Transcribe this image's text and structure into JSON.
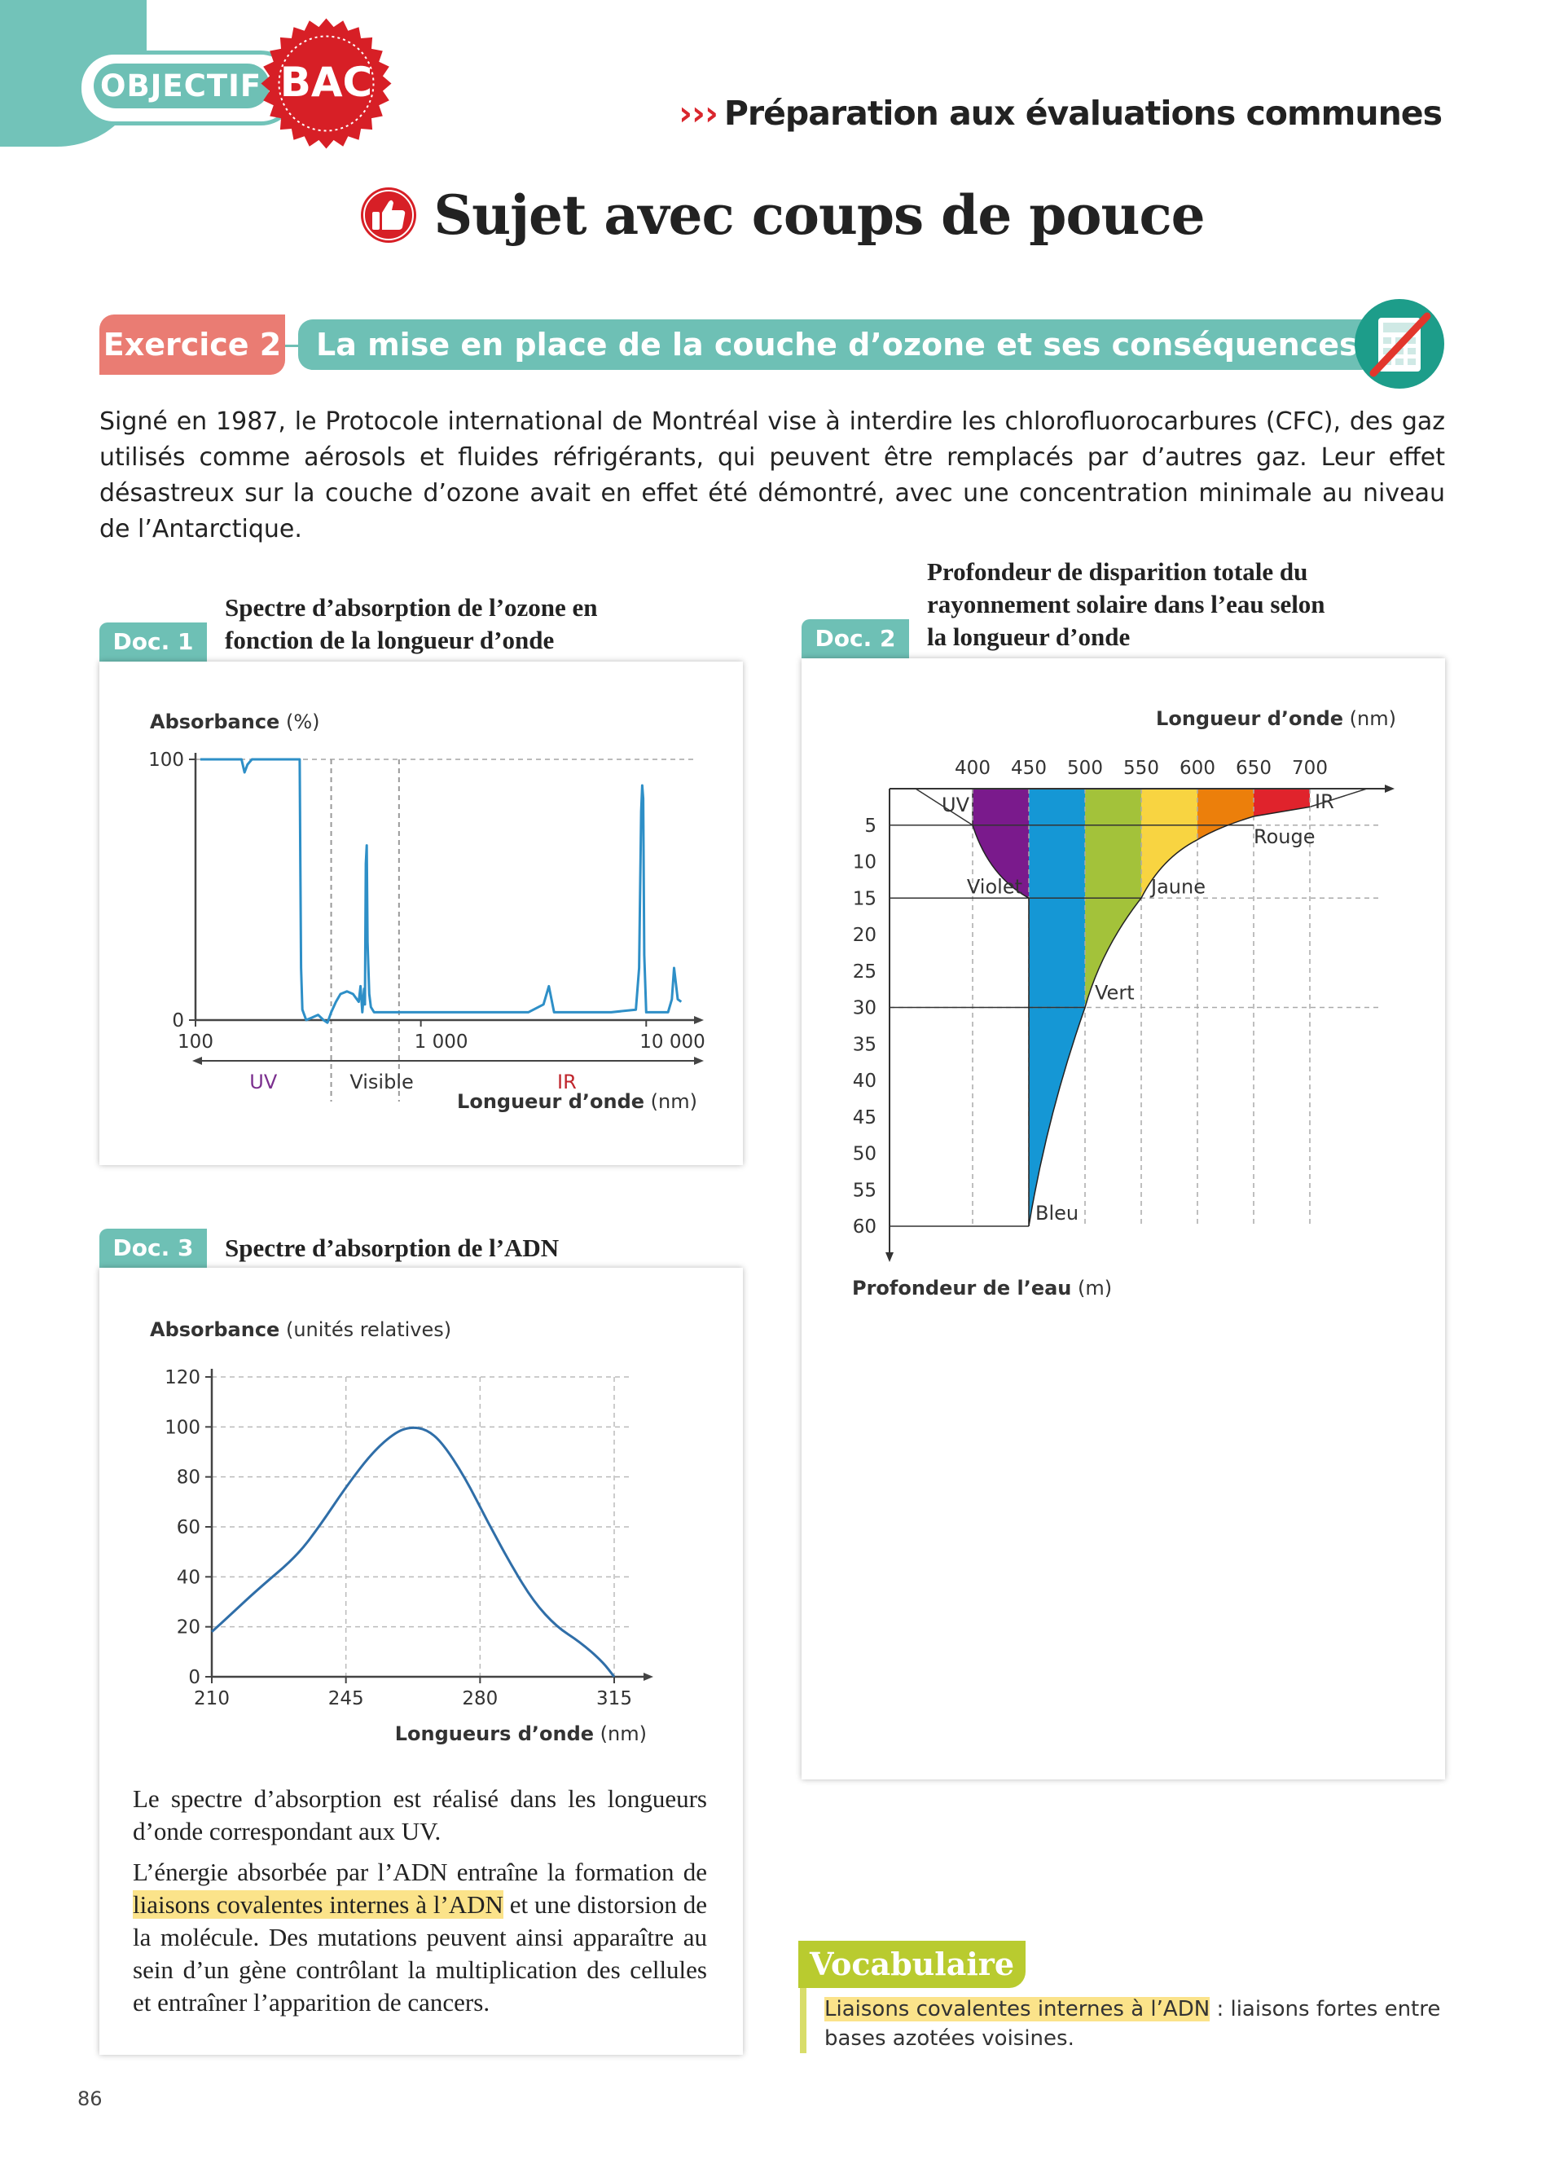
{
  "header": {
    "objectif_label": "OBJECTIF",
    "bac_label": "BAC",
    "chevrons": "›››",
    "section_label": "Préparation aux évaluations communes"
  },
  "title": "Sujet avec coups de pouce",
  "exercise": {
    "badge": "Exercice 2",
    "title": "La mise en place de la couche d’ozone et ses conséquences",
    "intro": "Signé en 1987, le Protocole international de Montréal vise à interdire les chlorofluorocarbures (CFC), des gaz utilisés comme aérosols et fluides réfrigérants, qui peuvent être remplacés par d’autres gaz. Leur effet désastreux sur la couche d’ozone avait en effet été démontré, avec une concentration minimale au niveau de l’Antarctique."
  },
  "doc1": {
    "tab": "Doc. 1",
    "title": "Spectre d’absorption de l’ozone en fonction de la longueur d’onde"
  },
  "doc2": {
    "tab": "Doc. 2",
    "title": "Profondeur de disparition totale du rayonnement solaire dans l’eau selon la longueur d’onde"
  },
  "doc3": {
    "tab": "Doc. 3",
    "title": "Spectre d’absorption de l’ADN",
    "para1": "Le spectre d’absorption est réalisé dans les longueurs d’onde correspondant aux UV.",
    "para2_a": "L’énergie absorbée par l’ADN entraîne la formation de ",
    "para2_hl": "liaisons covalentes internes à l’ADN",
    "para2_b": " et une distorsion de la molécule. Des mutations peuvent ainsi apparaître au sein d’un gène contrôlant la multiplication des cellules et entraîner l’apparition de cancers."
  },
  "vocab": {
    "label": "Vocabulaire",
    "term": "Liaisons covalentes internes à l’ADN",
    "definition": " : liaisons fortes entre bases azotées voisines."
  },
  "page_number": "86",
  "chart_data": [
    {
      "id": "doc1",
      "type": "line",
      "ylabel_bold": "Absorbance",
      "ylabel_unit": " (%)",
      "xlabel_bold": "Longueur d’onde",
      "xlabel_unit": " (nm)",
      "x_scale": "log",
      "xlim": [
        100,
        15000
      ],
      "ylim": [
        0,
        100
      ],
      "x_ticks": [
        "100",
        "1 000",
        "10 000"
      ],
      "y_ticks": [
        "0",
        "100"
      ],
      "regions": [
        {
          "label": "UV",
          "from": 100,
          "to": 400,
          "color": "#7b2f8e"
        },
        {
          "label": "Visible",
          "from": 400,
          "to": 800,
          "color": "#333333"
        },
        {
          "label": "IR",
          "from": 800,
          "to": 15000,
          "color": "#c0262d"
        }
      ],
      "series": [
        {
          "color": "#2e8fc7",
          "x": [
            105,
            160,
            165,
            170,
            178,
            190,
            205,
            225,
            260,
            290,
            292,
            294,
            298,
            310,
            330,
            350,
            370,
            385,
            400,
            420,
            440,
            470,
            500,
            530,
            540,
            550,
            560,
            565,
            570,
            575,
            580,
            590,
            600,
            620,
            650,
            700,
            800,
            1000,
            2000,
            3000,
            3500,
            3700,
            3800,
            3900,
            4200,
            5000,
            7000,
            9000,
            9300,
            9500,
            9600,
            9700,
            9800,
            10000,
            11000,
            12500,
            13000,
            13300,
            13800,
            14300
          ],
          "y": [
            100,
            100,
            95,
            98,
            100,
            100,
            100,
            100,
            100,
            100,
            60,
            20,
            4,
            0,
            1,
            2,
            0,
            -1,
            3,
            7,
            10,
            11,
            10,
            7,
            13,
            3,
            12,
            6,
            60,
            67,
            30,
            10,
            5,
            3,
            3,
            3,
            3,
            3,
            3,
            3,
            6,
            13,
            8,
            3,
            3,
            3,
            3,
            4,
            20,
            80,
            90,
            85,
            25,
            3,
            3,
            3,
            8,
            20,
            8,
            7
          ]
        }
      ]
    },
    {
      "id": "doc3",
      "type": "line",
      "ylabel_bold": "Absorbance",
      "ylabel_unit": " (unités relatives)",
      "xlabel_bold": "Longueurs d’onde",
      "xlabel_unit": " (nm)",
      "xlim": [
        210,
        315
      ],
      "ylim": [
        0,
        120
      ],
      "x_ticks": [
        210,
        245,
        280,
        315
      ],
      "y_ticks": [
        0,
        20,
        40,
        60,
        80,
        100,
        120
      ],
      "grid": true,
      "series": [
        {
          "color": "#2f6ea8",
          "x": [
            210,
            215,
            222,
            232,
            238,
            245,
            252,
            258,
            262,
            266,
            270,
            276,
            282,
            288,
            294,
            300,
            306,
            312,
            315
          ],
          "y": [
            18,
            25,
            35,
            48,
            60,
            76,
            90,
            98,
            100,
            99,
            94,
            80,
            62,
            45,
            30,
            20,
            14,
            6,
            0
          ]
        }
      ]
    },
    {
      "id": "doc2",
      "type": "area",
      "xlabel_bold": "Longueur d’onde",
      "xlabel_unit": " (nm)",
      "ylabel_bold": "Profondeur de l’eau",
      "ylabel_unit": " (m)",
      "x_ticks": [
        400,
        450,
        500,
        550,
        600,
        650,
        700
      ],
      "y_ticks": [
        5,
        10,
        15,
        20,
        25,
        30,
        35,
        40,
        45,
        50,
        55,
        60
      ],
      "ylim": [
        0,
        60
      ],
      "bands": [
        {
          "label": "UV",
          "color": "#ffffff"
        },
        {
          "label": "Violet",
          "color": "#7a1a8c",
          "depth": 15
        },
        {
          "label": "Bleu",
          "color": "#1597d5",
          "depth": 60
        },
        {
          "label": "Vert",
          "color": "#a3c23a",
          "depth": 30
        },
        {
          "label": "Jaune",
          "color": "#f8d441",
          "depth": 15
        },
        {
          "label": "Rouge",
          "color": "#ec7f0b",
          "depth": 5
        },
        {
          "label": "IR",
          "color": "#e0232c"
        }
      ]
    }
  ]
}
